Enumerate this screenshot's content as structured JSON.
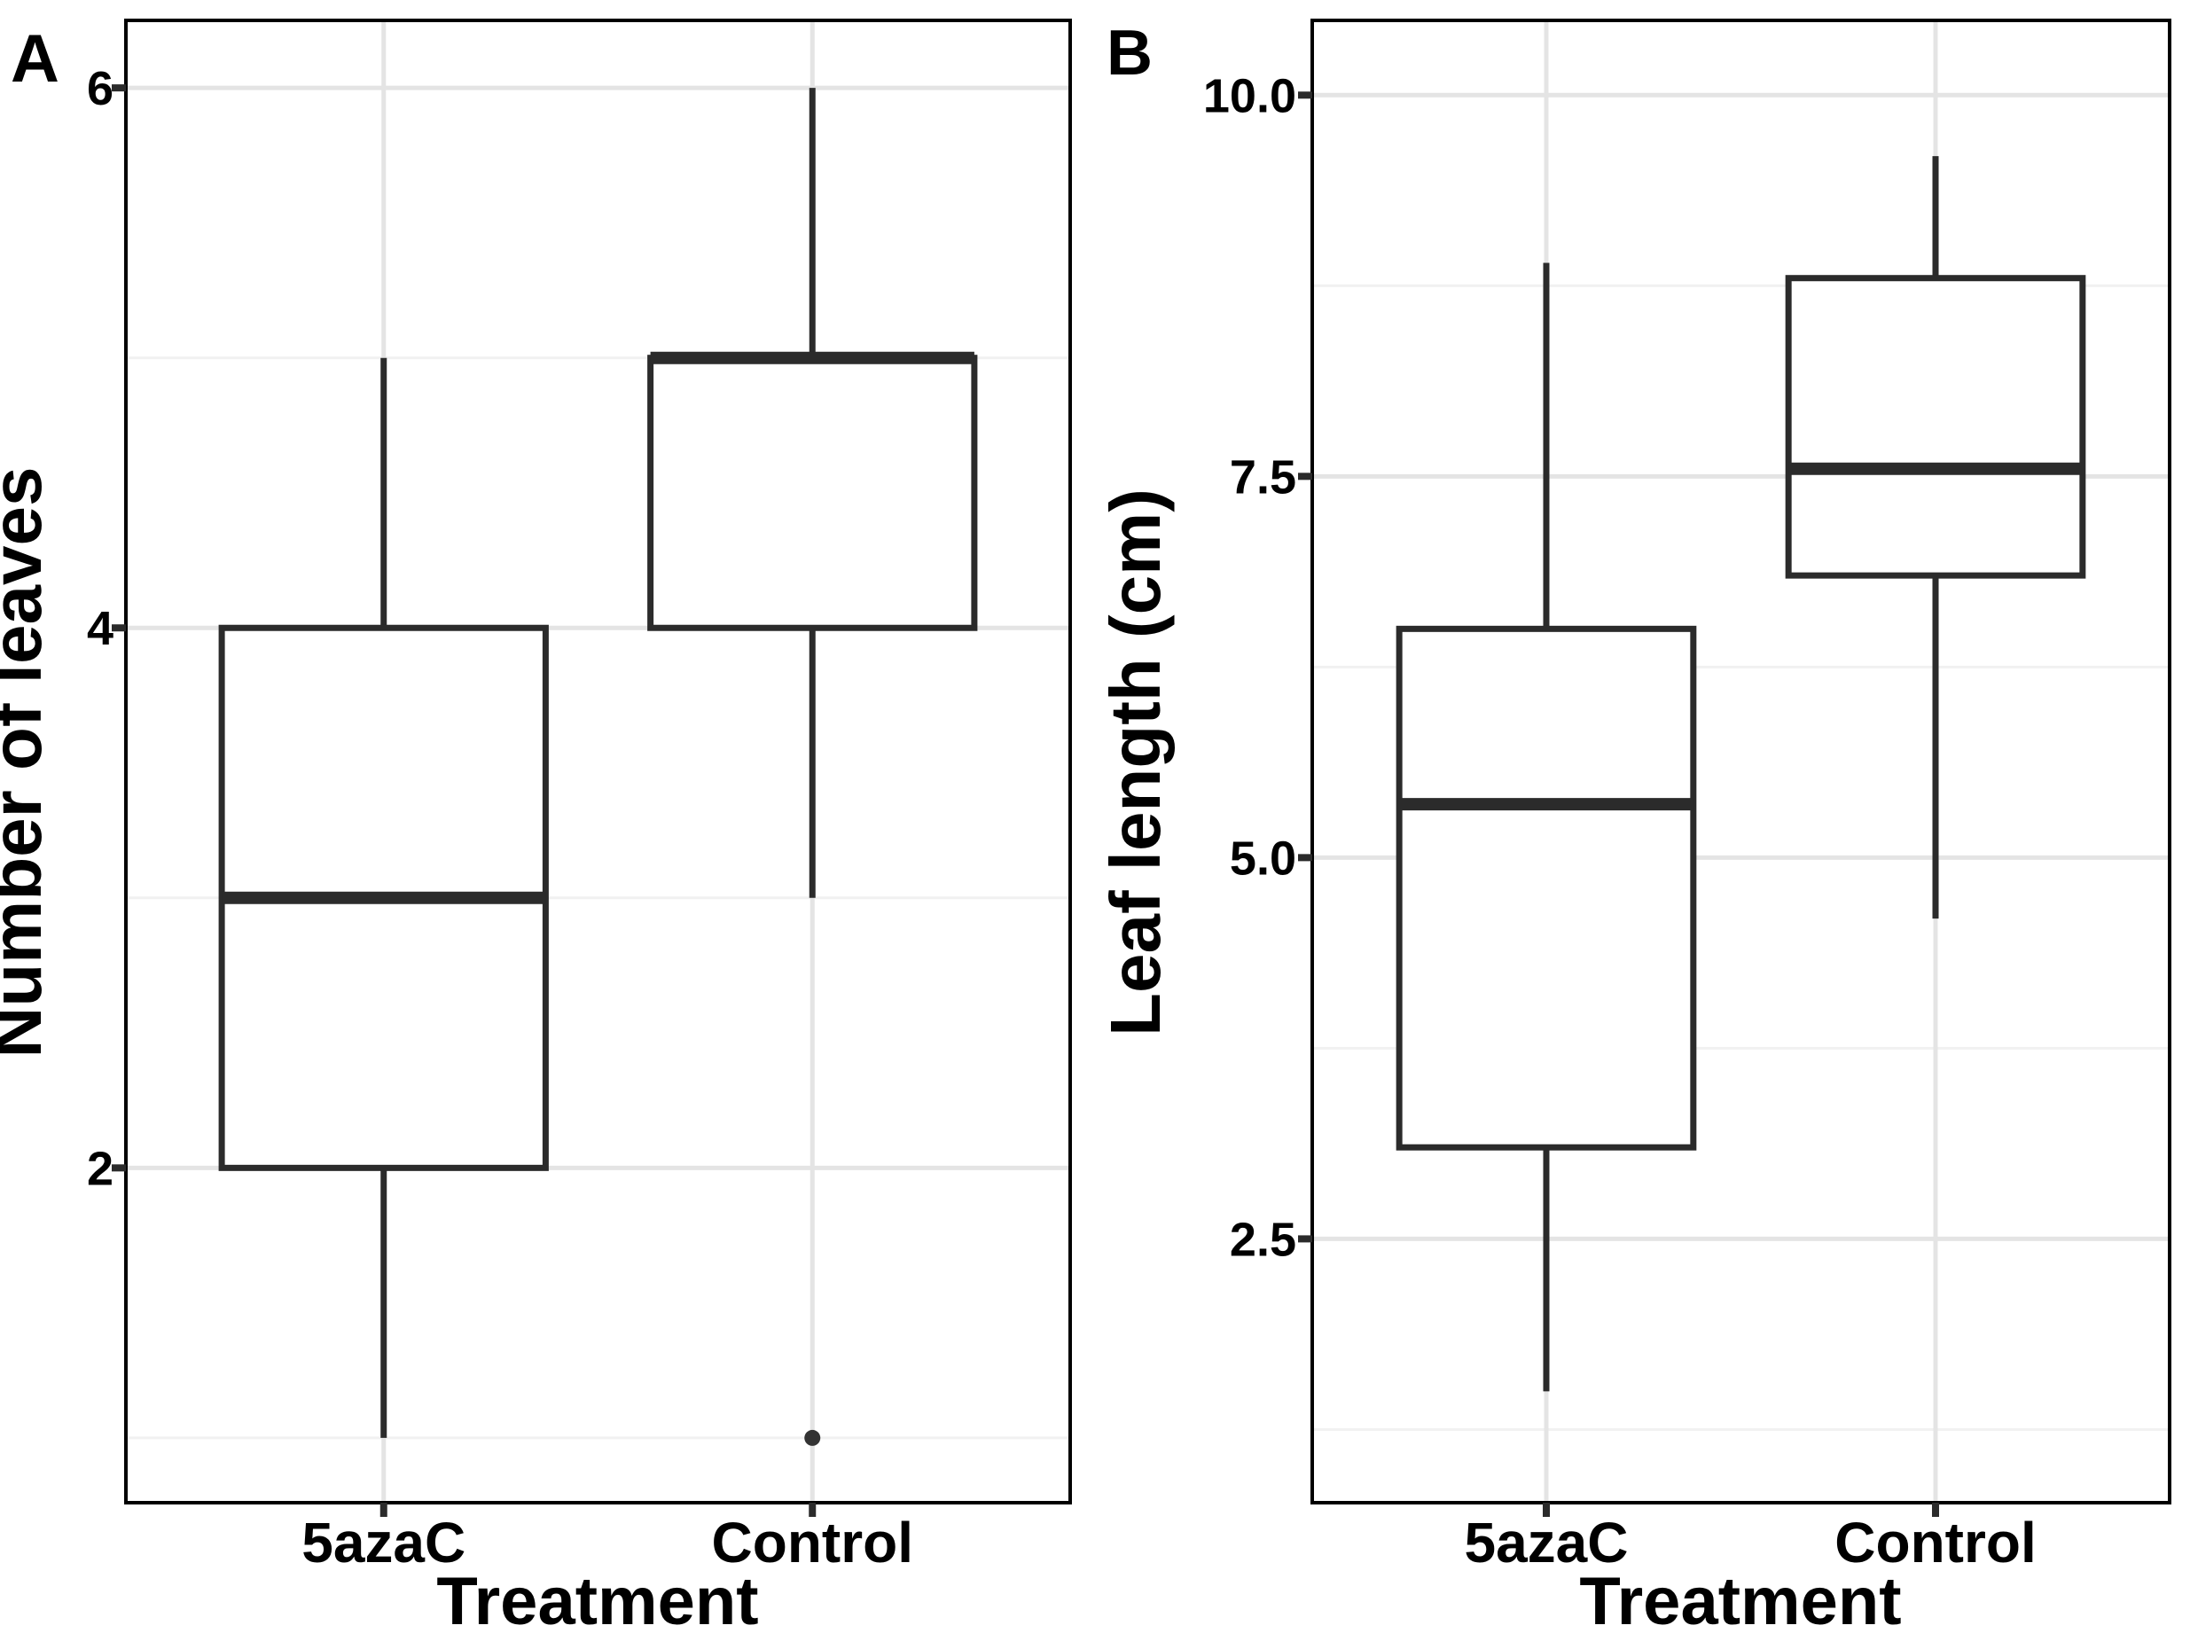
{
  "figure": {
    "panels": [
      {
        "tag": "A",
        "ylabel": "Number of leaves",
        "xlabel": "Treatment",
        "categories": [
          "5azaC",
          "Control"
        ],
        "ytick_labels": [
          "2",
          "4",
          "6"
        ]
      },
      {
        "tag": "B",
        "ylabel": "Leaf length (cm)",
        "xlabel": "Treatment",
        "categories": [
          "5azaC",
          "Control"
        ],
        "ytick_labels": [
          "2.5",
          "5.0",
          "7.5",
          "10.0"
        ]
      }
    ],
    "colors": {
      "line": "#2b2b2b",
      "panel_border": "#000000",
      "grid_major": "#e4e4e4",
      "grid_minor": "#f1f1f1",
      "background": "#ffffff",
      "text": "#000000",
      "outlier": "#333333"
    }
  },
  "chart_data": [
    {
      "type": "boxplot",
      "panel": "A",
      "title": "",
      "xlabel": "Treatment",
      "ylabel": "Number of leaves",
      "categories": [
        "5azaC",
        "Control"
      ],
      "yticks": [
        2,
        4,
        6
      ],
      "ylim": [
        0.76,
        6.25
      ],
      "grid": "major+minor",
      "legend": "none",
      "series": [
        {
          "category": "5azaC",
          "whisker_low": 1,
          "q1": 2,
          "median": 3,
          "q3": 4,
          "whisker_high": 5,
          "outliers": []
        },
        {
          "category": "Control",
          "whisker_low": 3,
          "q1": 4,
          "median": 5,
          "q3": 5,
          "whisker_high": 6,
          "outliers": [
            1
          ]
        }
      ]
    },
    {
      "type": "boxplot",
      "panel": "B",
      "title": "",
      "xlabel": "Treatment",
      "ylabel": "Leaf length (cm)",
      "categories": [
        "5azaC",
        "Control"
      ],
      "yticks": [
        2.5,
        5.0,
        7.5,
        10.0
      ],
      "ylim": [
        0.77,
        10.49
      ],
      "grid": "major+minor",
      "legend": "none",
      "series": [
        {
          "category": "5azaC",
          "whisker_low": 1.5,
          "q1": 3.1,
          "median": 5.35,
          "q3": 6.5,
          "whisker_high": 8.9,
          "outliers": []
        },
        {
          "category": "Control",
          "whisker_low": 4.6,
          "q1": 6.85,
          "median": 7.55,
          "q3": 8.8,
          "whisker_high": 9.6,
          "outliers": []
        }
      ]
    }
  ]
}
